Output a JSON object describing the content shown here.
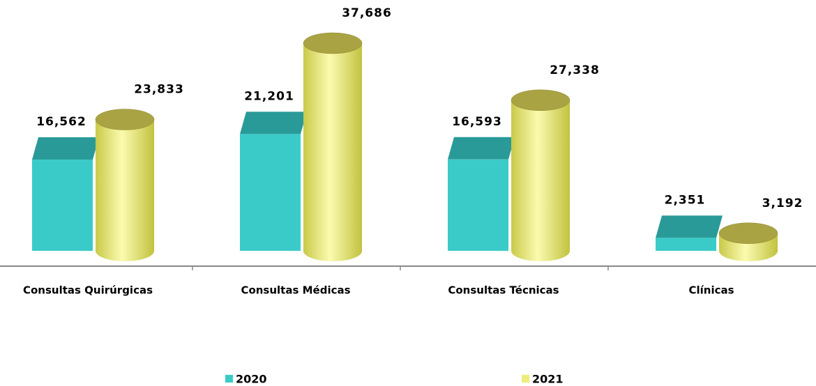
{
  "chart_data": {
    "type": "bar3d",
    "categories": [
      "Consultas Quirúrgicas",
      "Consultas Médicas",
      "Consultas Técnicas",
      "Clínicas"
    ],
    "series": [
      {
        "name": "2020",
        "color": "#3ACBC8",
        "values": [
          16562,
          21201,
          16593,
          2351
        ],
        "value_labels": [
          "16,562",
          "21,201",
          "16,593",
          "2,351"
        ]
      },
      {
        "name": "2021",
        "color": "#EDED7A",
        "values": [
          23833,
          37686,
          27338,
          3192
        ],
        "value_labels": [
          "23,833",
          "37,686",
          "27,338",
          "3,192"
        ]
      }
    ]
  }
}
